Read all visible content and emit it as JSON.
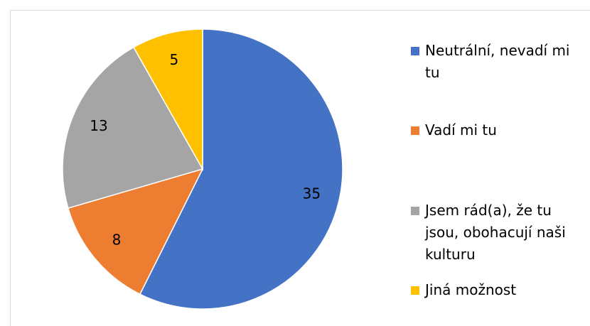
{
  "chart_data": {
    "type": "pie",
    "categories": [
      "Neutrální, nevadí mi tu",
      "Vadí mi tu",
      "Jsem rád(a), že tu jsou, obohacují naši kulturu",
      "Jiná možnost"
    ],
    "values": [
      35,
      8,
      13,
      5
    ],
    "colors": [
      "#4472c4",
      "#ed7d31",
      "#a5a5a5",
      "#ffc000"
    ],
    "legend": "right"
  }
}
